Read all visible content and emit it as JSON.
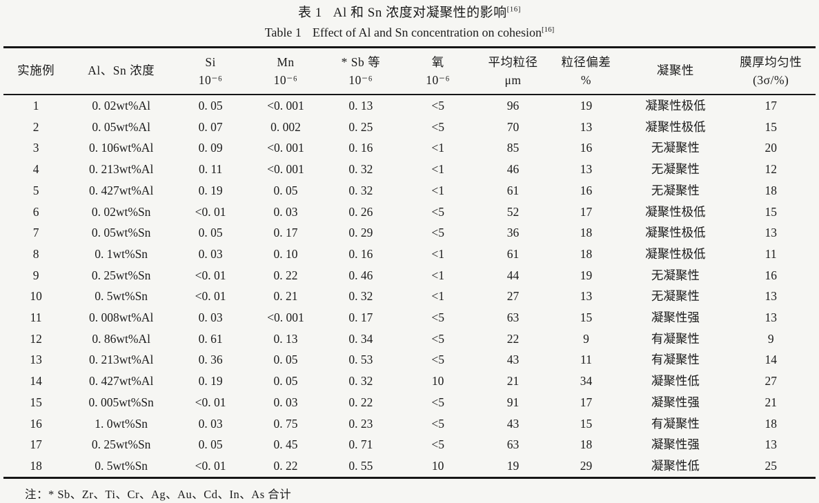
{
  "caption": {
    "zh_label": "表 1",
    "zh_text": "Al 和 Sn 浓度对凝聚性的影响",
    "en_label": "Table 1",
    "en_text": "Effect of Al and Sn concentration on cohesion",
    "ref": "[16]"
  },
  "table": {
    "columns": [
      {
        "line1": "实施例",
        "line2": ""
      },
      {
        "line1": "Al、Sn 浓度",
        "line2": ""
      },
      {
        "line1": "Si",
        "line2": "10⁻⁶"
      },
      {
        "line1": "Mn",
        "line2": "10⁻⁶"
      },
      {
        "line1": "* Sb 等",
        "line2": "10⁻⁶"
      },
      {
        "line1": "氧",
        "line2": "10⁻⁶"
      },
      {
        "line1": "平均粒径",
        "line2": "μm"
      },
      {
        "line1": "粒径偏差",
        "line2": "%"
      },
      {
        "line1": "凝聚性",
        "line2": ""
      },
      {
        "line1": "膜厚均匀性",
        "line2": "(3σ/%)"
      }
    ],
    "rows": [
      [
        "1",
        "0. 02wt%Al",
        "0. 05",
        "<0. 001",
        "0. 13",
        "<5",
        "96",
        "19",
        "凝聚性极低",
        "17"
      ],
      [
        "2",
        "0. 05wt%Al",
        "0. 07",
        "0. 002",
        "0. 25",
        "<5",
        "70",
        "13",
        "凝聚性极低",
        "15"
      ],
      [
        "3",
        "0. 106wt%Al",
        "0. 09",
        "<0. 001",
        "0. 16",
        "<1",
        "85",
        "16",
        "无凝聚性",
        "20"
      ],
      [
        "4",
        "0. 213wt%Al",
        "0. 11",
        "<0. 001",
        "0. 32",
        "<1",
        "46",
        "13",
        "无凝聚性",
        "12"
      ],
      [
        "5",
        "0. 427wt%Al",
        "0. 19",
        "0. 05",
        "0. 32",
        "<1",
        "61",
        "16",
        "无凝聚性",
        "18"
      ],
      [
        "6",
        "0. 02wt%Sn",
        "<0. 01",
        "0. 03",
        "0. 26",
        "<5",
        "52",
        "17",
        "凝聚性极低",
        "15"
      ],
      [
        "7",
        "0. 05wt%Sn",
        "0. 05",
        "0. 17",
        "0. 29",
        "<5",
        "36",
        "18",
        "凝聚性极低",
        "13"
      ],
      [
        "8",
        "0. 1wt%Sn",
        "0. 03",
        "0. 10",
        "0. 16",
        "<1",
        "61",
        "18",
        "凝聚性极低",
        "11"
      ],
      [
        "9",
        "0. 25wt%Sn",
        "<0. 01",
        "0. 22",
        "0. 46",
        "<1",
        "44",
        "19",
        "无凝聚性",
        "16"
      ],
      [
        "10",
        "0. 5wt%Sn",
        "<0. 01",
        "0. 21",
        "0. 32",
        "<1",
        "27",
        "13",
        "无凝聚性",
        "13"
      ],
      [
        "11",
        "0. 008wt%Al",
        "0. 03",
        "<0. 001",
        "0. 17",
        "<5",
        "63",
        "15",
        "凝聚性强",
        "13"
      ],
      [
        "12",
        "0. 86wt%Al",
        "0. 61",
        "0. 13",
        "0. 34",
        "<5",
        "22",
        "9",
        "有凝聚性",
        "9"
      ],
      [
        "13",
        "0. 213wt%Al",
        "0. 36",
        "0. 05",
        "0. 53",
        "<5",
        "43",
        "11",
        "有凝聚性",
        "14"
      ],
      [
        "14",
        "0. 427wt%Al",
        "0. 19",
        "0. 05",
        "0. 32",
        "10",
        "21",
        "34",
        "凝聚性低",
        "27"
      ],
      [
        "15",
        "0. 005wt%Sn",
        "<0. 01",
        "0. 03",
        "0. 22",
        "<5",
        "91",
        "17",
        "凝聚性强",
        "21"
      ],
      [
        "16",
        "1. 0wt%Sn",
        "0. 03",
        "0. 75",
        "0. 23",
        "<5",
        "43",
        "15",
        "有凝聚性",
        "18"
      ],
      [
        "17",
        "0. 25wt%Sn",
        "0. 05",
        "0. 45",
        "0. 71",
        "<5",
        "63",
        "18",
        "凝聚性强",
        "13"
      ],
      [
        "18",
        "0. 5wt%Sn",
        "<0. 01",
        "0. 22",
        "0. 55",
        "10",
        "19",
        "29",
        "凝聚性低",
        "25"
      ]
    ],
    "column_widths_percent": [
      8,
      13,
      9,
      9.5,
      9,
      10,
      8.5,
      9.5,
      12.5,
      11
    ]
  },
  "footnote": "注：* Sb、Zr、Ti、Cr、Ag、Au、Cd、In、As 合计",
  "colors": {
    "background": "#f6f6f3",
    "text": "#1b1b1b",
    "rule": "#161616"
  }
}
